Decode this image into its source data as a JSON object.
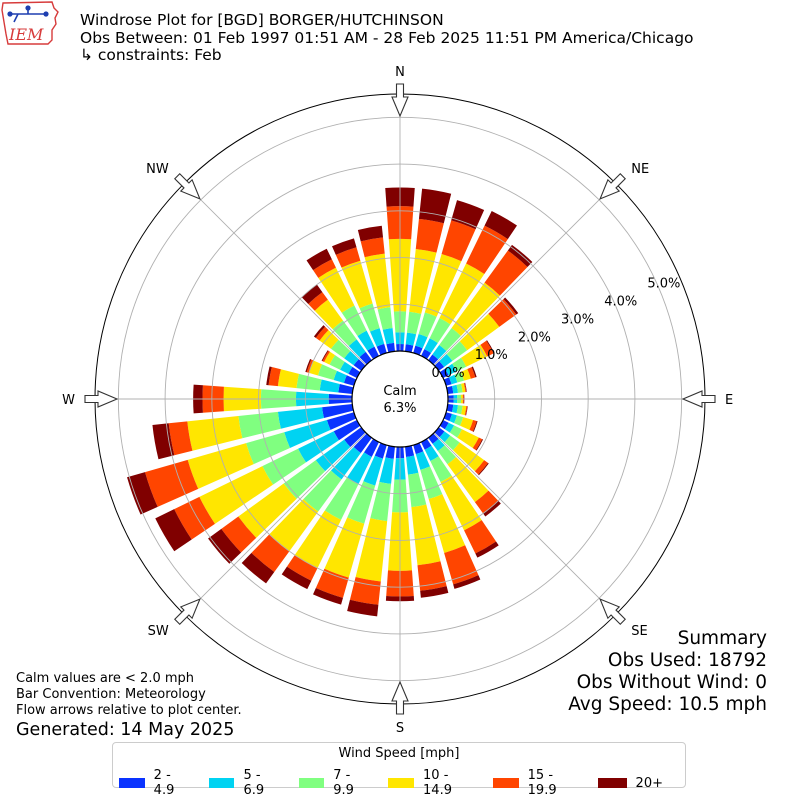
{
  "logo": {
    "text": "IEM",
    "icon": "iowa-state-outline-icon"
  },
  "header": {
    "line1": "Windrose Plot for [BGD] BORGER/HUTCHINSON",
    "line2": "Obs Between: 01 Feb 1997 01:51 AM - 28 Feb 2025 11:51 PM America/Chicago",
    "line3": "↳ constraints: Feb"
  },
  "summary": {
    "title": "Summary",
    "obs_used": "Obs Used: 18792",
    "obs_without_wind": "Obs Without Wind: 0",
    "avg_speed": "Avg Speed: 10.5 mph"
  },
  "notes": {
    "calm_note": "Calm values are < 2.0 mph",
    "bar_convention": "Bar Convention: Meteorology",
    "flow_arrows": "Flow arrows relative to plot center.",
    "generated": "Generated: 14 May 2025"
  },
  "chart_data": {
    "type": "windrose",
    "units": "%",
    "calm": {
      "label": "Calm",
      "value_label": "6.3%",
      "value": 6.3
    },
    "radial_ticks": [
      "0.0%",
      "1.0%",
      "2.0%",
      "3.0%",
      "4.0%",
      "5.0%"
    ],
    "radial_range": [
      0,
      5.5
    ],
    "compass_labels": [
      {
        "label": "N",
        "angle": 0
      },
      {
        "label": "NE",
        "angle": 45
      },
      {
        "label": "E",
        "angle": 90
      },
      {
        "label": "SE",
        "angle": 135
      },
      {
        "label": "S",
        "angle": 180
      },
      {
        "label": "SW",
        "angle": 225
      },
      {
        "label": "W",
        "angle": 270
      },
      {
        "label": "NW",
        "angle": 315
      }
    ],
    "legend_title": "Wind Speed [mph]",
    "speed_bins": [
      {
        "label": "2 - 4.9",
        "color": "#0a33ff"
      },
      {
        "label": "5 - 6.9",
        "color": "#00d3f2"
      },
      {
        "label": "7 - 9.9",
        "color": "#80ff80"
      },
      {
        "label": "10 - 14.9",
        "color": "#ffe600"
      },
      {
        "label": "15 - 19.9",
        "color": "#ff4500"
      },
      {
        "label": "20+",
        "color": "#800000"
      }
    ],
    "directions": [
      0,
      10,
      20,
      30,
      40,
      50,
      60,
      70,
      80,
      90,
      100,
      110,
      120,
      130,
      140,
      150,
      160,
      170,
      180,
      190,
      200,
      210,
      220,
      230,
      240,
      250,
      260,
      270,
      280,
      290,
      300,
      310,
      320,
      330,
      340,
      350
    ],
    "cumulative_percent": [
      [
        0.15,
        0.4,
        0.85,
        2.4,
        3.1,
        3.5
      ],
      [
        0.15,
        0.4,
        0.85,
        2.2,
        2.85,
        3.5
      ],
      [
        0.16,
        0.42,
        0.9,
        2.2,
        2.95,
        3.4
      ],
      [
        0.16,
        0.42,
        0.9,
        2.2,
        3.1,
        3.45
      ],
      [
        0.15,
        0.4,
        0.85,
        2.05,
        2.9,
        3.05
      ],
      [
        0.14,
        0.36,
        0.75,
        1.6,
        2.05,
        2.1
      ],
      [
        0.13,
        0.32,
        0.55,
        1.05,
        1.2,
        1.22
      ],
      [
        0.12,
        0.25,
        0.4,
        0.55,
        0.65,
        0.68
      ],
      [
        0.12,
        0.22,
        0.32,
        0.38,
        0.4,
        0.41
      ],
      [
        0.12,
        0.2,
        0.28,
        0.32,
        0.34,
        0.35
      ],
      [
        0.12,
        0.22,
        0.32,
        0.4,
        0.42,
        0.43
      ],
      [
        0.13,
        0.24,
        0.38,
        0.6,
        0.68,
        0.7
      ],
      [
        0.13,
        0.26,
        0.45,
        0.85,
        0.93,
        0.95
      ],
      [
        0.15,
        0.3,
        0.55,
        1.2,
        1.3,
        1.32
      ],
      [
        0.16,
        0.35,
        0.7,
        1.7,
        2.0,
        2.08
      ],
      [
        0.18,
        0.45,
        0.95,
        2.1,
        2.65,
        2.75
      ],
      [
        0.2,
        0.55,
        1.2,
        2.4,
        3.1,
        3.2
      ],
      [
        0.22,
        0.6,
        1.3,
        2.55,
        3.1,
        3.25
      ],
      [
        0.24,
        0.7,
        1.4,
        2.65,
        3.2,
        3.3
      ],
      [
        0.26,
        0.8,
        1.6,
        2.9,
        3.4,
        3.65
      ],
      [
        0.3,
        0.9,
        1.75,
        2.95,
        3.4,
        3.55
      ],
      [
        0.35,
        1.0,
        1.85,
        3.0,
        3.3,
        3.5
      ],
      [
        0.4,
        1.1,
        1.95,
        3.0,
        3.55,
        3.85
      ],
      [
        0.45,
        1.2,
        2.05,
        3.25,
        3.7,
        4.05
      ],
      [
        0.55,
        1.4,
        2.25,
        3.75,
        4.35,
        4.8
      ],
      [
        0.6,
        1.55,
        2.4,
        3.7,
        4.65,
        5.05
      ],
      [
        0.65,
        1.6,
        2.45,
        3.55,
        3.95,
        4.3
      ],
      [
        0.5,
        1.2,
        1.95,
        2.75,
        3.2,
        3.4
      ],
      [
        0.3,
        0.7,
        1.2,
        1.6,
        1.8,
        1.85
      ],
      [
        0.22,
        0.45,
        0.8,
        1.0,
        1.05,
        1.08
      ],
      [
        0.2,
        0.4,
        0.65,
        0.78,
        0.82,
        0.84
      ],
      [
        0.2,
        0.45,
        0.8,
        1.1,
        1.2,
        1.25
      ],
      [
        0.22,
        0.55,
        1.05,
        1.6,
        1.8,
        2.0
      ],
      [
        0.22,
        0.6,
        1.2,
        2.1,
        2.3,
        2.55
      ],
      [
        0.2,
        0.55,
        1.1,
        2.05,
        2.35,
        2.55
      ],
      [
        0.18,
        0.5,
        0.95,
        2.1,
        2.45,
        2.7
      ]
    ]
  }
}
